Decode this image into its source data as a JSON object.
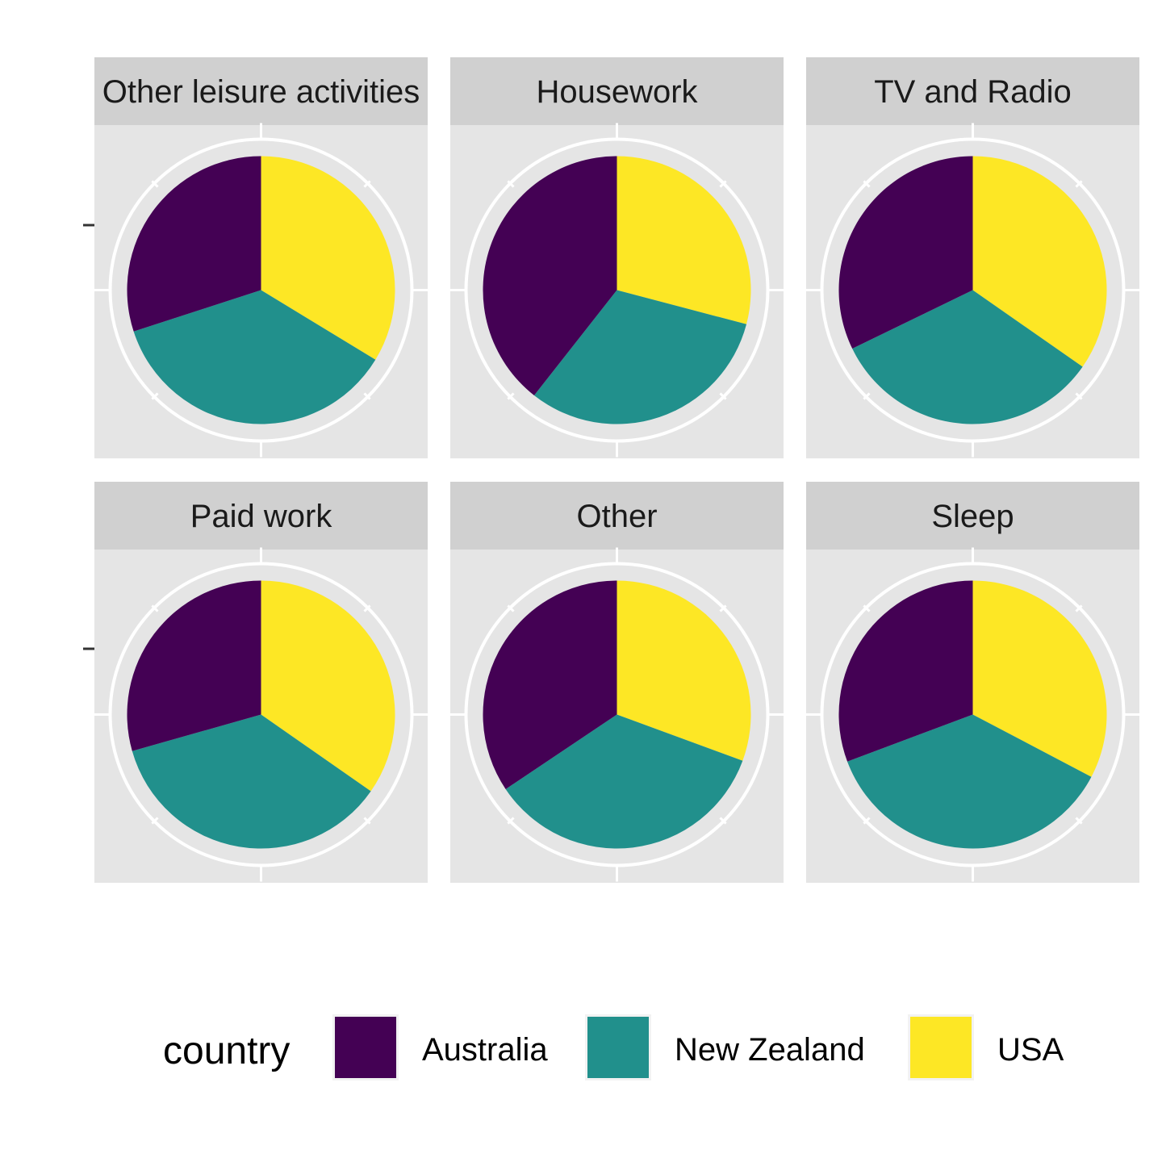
{
  "chart_data": {
    "type": "pie",
    "facet_by": "activity",
    "legend": {
      "title": "country",
      "position": "bottom"
    },
    "series": [
      {
        "name": "Australia",
        "color": "#440154"
      },
      {
        "name": "New Zealand",
        "color": "#21908C"
      },
      {
        "name": "USA",
        "color": "#FDE725"
      }
    ],
    "facets": [
      {
        "title": "Other leisure activities",
        "values": [
          0.3,
          0.363,
          0.337
        ]
      },
      {
        "title": "Housework",
        "values": [
          0.394,
          0.315,
          0.291
        ]
      },
      {
        "title": "TV and Radio",
        "values": [
          0.322,
          0.331,
          0.347
        ]
      },
      {
        "title": "Paid work",
        "values": [
          0.294,
          0.359,
          0.347
        ]
      },
      {
        "title": "Other",
        "values": [
          0.344,
          0.35,
          0.306
        ]
      },
      {
        "title": "Sleep",
        "values": [
          0.307,
          0.366,
          0.327
        ]
      }
    ],
    "grid": true,
    "panel_background": "#E5E5E5",
    "strip_background": "#D0D0D0"
  }
}
